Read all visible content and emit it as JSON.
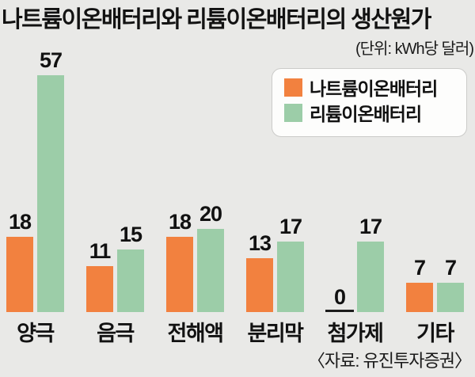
{
  "title": "나트륨이온배터리와 리튬이온배터리의 생산원가",
  "unit_label": "(단위: kWh당 달러)",
  "source": "〈자료: 유진투자증권〉",
  "legend": {
    "items": [
      {
        "label": "나트륨이온배터리",
        "color": "#F2813F"
      },
      {
        "label": "리튬이온배터리",
        "color": "#9CCDA8"
      }
    ]
  },
  "chart_data": {
    "type": "bar",
    "title": "나트륨이온배터리와 리튬이온배터리의 생산원가",
    "unit": "kWh당 달러",
    "categories": [
      "양극",
      "음극",
      "전해액",
      "분리막",
      "첨가제",
      "기타"
    ],
    "series": [
      {
        "name": "나트륨이온배터리",
        "color": "#F2813F",
        "values": [
          18,
          11,
          18,
          13,
          0,
          7
        ]
      },
      {
        "name": "리튬이온배터리",
        "color": "#9CCDA8",
        "values": [
          57,
          15,
          20,
          17,
          17,
          7
        ]
      }
    ],
    "ylim": [
      0,
      60
    ],
    "grid": false,
    "value_labels": true,
    "legend_position": "top-right",
    "source": "유진투자증권"
  },
  "colors": {
    "background": "#E9E9E7",
    "text": "#111111",
    "zero_line": "#1C1C1C"
  }
}
